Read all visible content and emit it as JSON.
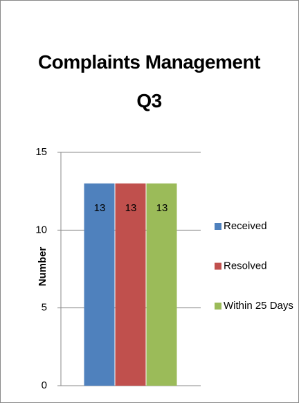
{
  "chart_data": {
    "type": "bar",
    "title": "Complaints Management Q3",
    "y_label": "Number",
    "categories": [
      null
    ],
    "series": [
      {
        "name": "Received",
        "color": "#4f81bd",
        "values": [
          13
        ]
      },
      {
        "name": "Resolved",
        "color": "#c0504d",
        "values": [
          13
        ]
      },
      {
        "name": "Within 25 Days",
        "color": "#9bbb59",
        "values": [
          13
        ]
      }
    ],
    "ylim": [
      0,
      15
    ],
    "yticks": [
      0,
      5,
      10,
      15
    ],
    "grid": true,
    "legend": "right"
  }
}
